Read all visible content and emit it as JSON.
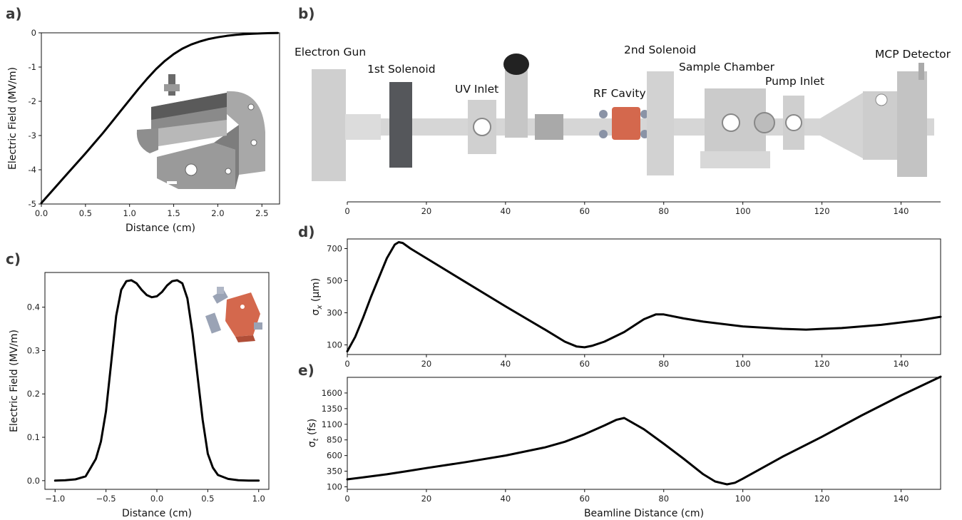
{
  "panels": {
    "a": "a)",
    "b": "b)",
    "c": "c)",
    "d": "d)",
    "e": "e)"
  },
  "components": {
    "electron_gun": "Electron Gun",
    "solenoid1": "1st Solenoid",
    "uv_inlet": "UV Inlet",
    "rf_cavity": "RF Cavity",
    "solenoid2": "2nd Solenoid",
    "sample_chamber": "Sample Chamber",
    "pump_inlet": "Pump Inlet",
    "mcp_detector": "MCP Detector"
  },
  "colors": {
    "curve": "#000000",
    "rf_copper": "#d4684d",
    "hardware_grey": "#c8c8c8",
    "solenoid_dark": "#55575b"
  },
  "chart_data": [
    {
      "id": "a",
      "type": "line",
      "xlabel": "Distance (cm)",
      "ylabel": "Electric Field (MV/m)",
      "xlim": [
        0,
        2.7
      ],
      "ylim": [
        -5,
        0
      ],
      "xticks": [
        0.0,
        0.5,
        1.0,
        1.5,
        2.0,
        2.5
      ],
      "yticks": [
        0,
        -1,
        -2,
        -3,
        -4,
        -5
      ],
      "x": [
        0,
        0.1,
        0.2,
        0.3,
        0.4,
        0.5,
        0.6,
        0.7,
        0.8,
        0.9,
        1.0,
        1.1,
        1.2,
        1.3,
        1.4,
        1.5,
        1.6,
        1.7,
        1.8,
        1.9,
        2.0,
        2.1,
        2.2,
        2.3,
        2.4,
        2.5,
        2.6,
        2.68
      ],
      "y": [
        -4.97,
        -4.68,
        -4.39,
        -4.1,
        -3.81,
        -3.52,
        -3.22,
        -2.92,
        -2.6,
        -2.28,
        -1.96,
        -1.64,
        -1.34,
        -1.06,
        -0.82,
        -0.62,
        -0.46,
        -0.34,
        -0.25,
        -0.18,
        -0.13,
        -0.09,
        -0.06,
        -0.04,
        -0.025,
        -0.015,
        -0.008,
        -0.005
      ]
    },
    {
      "id": "b",
      "type": "diagram-axis",
      "xlim": [
        0,
        150
      ],
      "xticks": [
        0,
        20,
        40,
        60,
        80,
        100,
        120,
        140
      ]
    },
    {
      "id": "c",
      "type": "line",
      "xlabel": "Distance (cm)",
      "ylabel": "Electric Field (MV/m)",
      "xlim": [
        -1.1,
        1.1
      ],
      "ylim": [
        -0.02,
        0.48
      ],
      "xticks": [
        -1.0,
        -0.5,
        0.0,
        0.5,
        1.0
      ],
      "yticks": [
        0.0,
        0.1,
        0.2,
        0.3,
        0.4
      ],
      "x": [
        -1.0,
        -0.9,
        -0.8,
        -0.7,
        -0.6,
        -0.55,
        -0.5,
        -0.45,
        -0.4,
        -0.35,
        -0.3,
        -0.25,
        -0.2,
        -0.15,
        -0.1,
        -0.05,
        0.0,
        0.05,
        0.1,
        0.15,
        0.2,
        0.25,
        0.3,
        0.35,
        0.4,
        0.45,
        0.5,
        0.55,
        0.6,
        0.7,
        0.8,
        0.9,
        1.0
      ],
      "y": [
        0.0,
        0.001,
        0.003,
        0.01,
        0.05,
        0.09,
        0.16,
        0.27,
        0.38,
        0.44,
        0.46,
        0.462,
        0.455,
        0.44,
        0.428,
        0.423,
        0.425,
        0.435,
        0.45,
        0.46,
        0.462,
        0.455,
        0.42,
        0.34,
        0.24,
        0.14,
        0.062,
        0.03,
        0.013,
        0.004,
        0.001,
        0.0,
        0.0
      ]
    },
    {
      "id": "d",
      "type": "line",
      "xlabel": "",
      "ylabel": "σx (μm)",
      "xlim": [
        0,
        150
      ],
      "ylim": [
        40,
        760
      ],
      "xticks": [
        0,
        20,
        40,
        60,
        80,
        100,
        120,
        140
      ],
      "yticks": [
        100,
        300,
        500,
        700
      ],
      "x": [
        0,
        2,
        4,
        6,
        8,
        10,
        12,
        13,
        14,
        16,
        20,
        30,
        40,
        50,
        55,
        58,
        60,
        62,
        65,
        70,
        75,
        78,
        80,
        85,
        90,
        100,
        110,
        116,
        125,
        135,
        145,
        150
      ],
      "y": [
        60,
        150,
        270,
        400,
        520,
        640,
        725,
        740,
        735,
        700,
        640,
        490,
        340,
        195,
        120,
        90,
        85,
        95,
        120,
        180,
        260,
        290,
        290,
        265,
        245,
        215,
        200,
        195,
        205,
        225,
        255,
        275
      ]
    },
    {
      "id": "e",
      "type": "line",
      "xlabel": "Beamline Distance (cm)",
      "ylabel": "σt (fs)",
      "xlim": [
        0,
        150
      ],
      "ylim": [
        60,
        1850
      ],
      "xticks": [
        0,
        20,
        40,
        60,
        80,
        100,
        120,
        140
      ],
      "yticks": [
        100,
        350,
        600,
        850,
        1100,
        1350,
        1600
      ],
      "x": [
        0,
        5,
        10,
        15,
        20,
        30,
        40,
        50,
        55,
        60,
        65,
        68,
        70,
        75,
        80,
        85,
        90,
        93,
        96,
        98,
        100,
        110,
        120,
        130,
        140,
        150
      ],
      "y": [
        220,
        260,
        300,
        350,
        400,
        495,
        600,
        730,
        820,
        940,
        1080,
        1170,
        1200,
        1020,
        790,
        550,
        300,
        185,
        140,
        165,
        230,
        580,
        900,
        1240,
        1560,
        1860
      ]
    }
  ]
}
